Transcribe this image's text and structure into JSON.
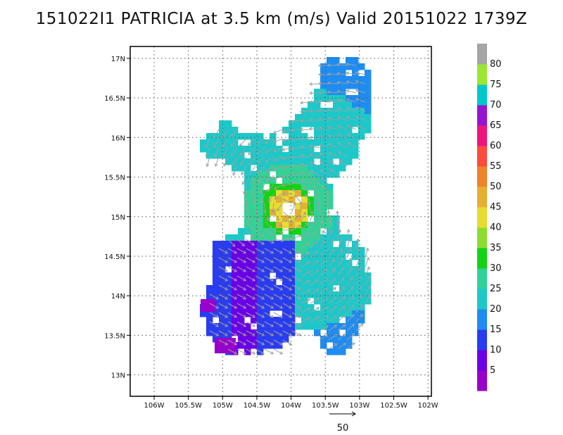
{
  "chart_data": {
    "type": "heatmap",
    "title": "151022I1 PATRICIA at 3.5 km (m/s) Valid 20151022 1739Z",
    "xlabel": "",
    "ylabel": "",
    "xlim": [
      -106.35,
      -101.95
    ],
    "ylim": [
      12.73,
      17.15
    ],
    "grid": true,
    "x_ticks": [
      -106,
      -105.5,
      -105,
      -104.5,
      -104,
      -103.5,
      -103,
      -102.5,
      -102
    ],
    "x_tick_labels": [
      "106W",
      "105.5W",
      "105W",
      "104.5W",
      "104W",
      "103.5W",
      "103W",
      "102.5W",
      "102W"
    ],
    "y_ticks": [
      13,
      13.5,
      14,
      14.5,
      15,
      15.5,
      16,
      16.5,
      17
    ],
    "y_tick_labels": [
      "13N",
      "13.5N",
      "14N",
      "14.5N",
      "15N",
      "15.5N",
      "16N",
      "16.5N",
      "17N"
    ],
    "colorbar": {
      "labels": [
        "5",
        "10",
        "15",
        "20",
        "25",
        "30",
        "35",
        "40",
        "45",
        "50",
        "55",
        "60",
        "65",
        "70",
        "75",
        "80"
      ],
      "colors": [
        "#9900cc",
        "#6a00e6",
        "#2a3cf0",
        "#1e8cf0",
        "#1ec8c8",
        "#32d296",
        "#14d214",
        "#8cdc32",
        "#e6dc32",
        "#e6af32",
        "#f08228",
        "#fa4b3c",
        "#f0147d",
        "#9614d2",
        "#00c8c8",
        "#9be632",
        "#a5a5a5"
      ]
    },
    "center": {
      "lon": -104.05,
      "lat": 15.1
    },
    "reference_vector": {
      "label": "50",
      "value": 50
    }
  }
}
